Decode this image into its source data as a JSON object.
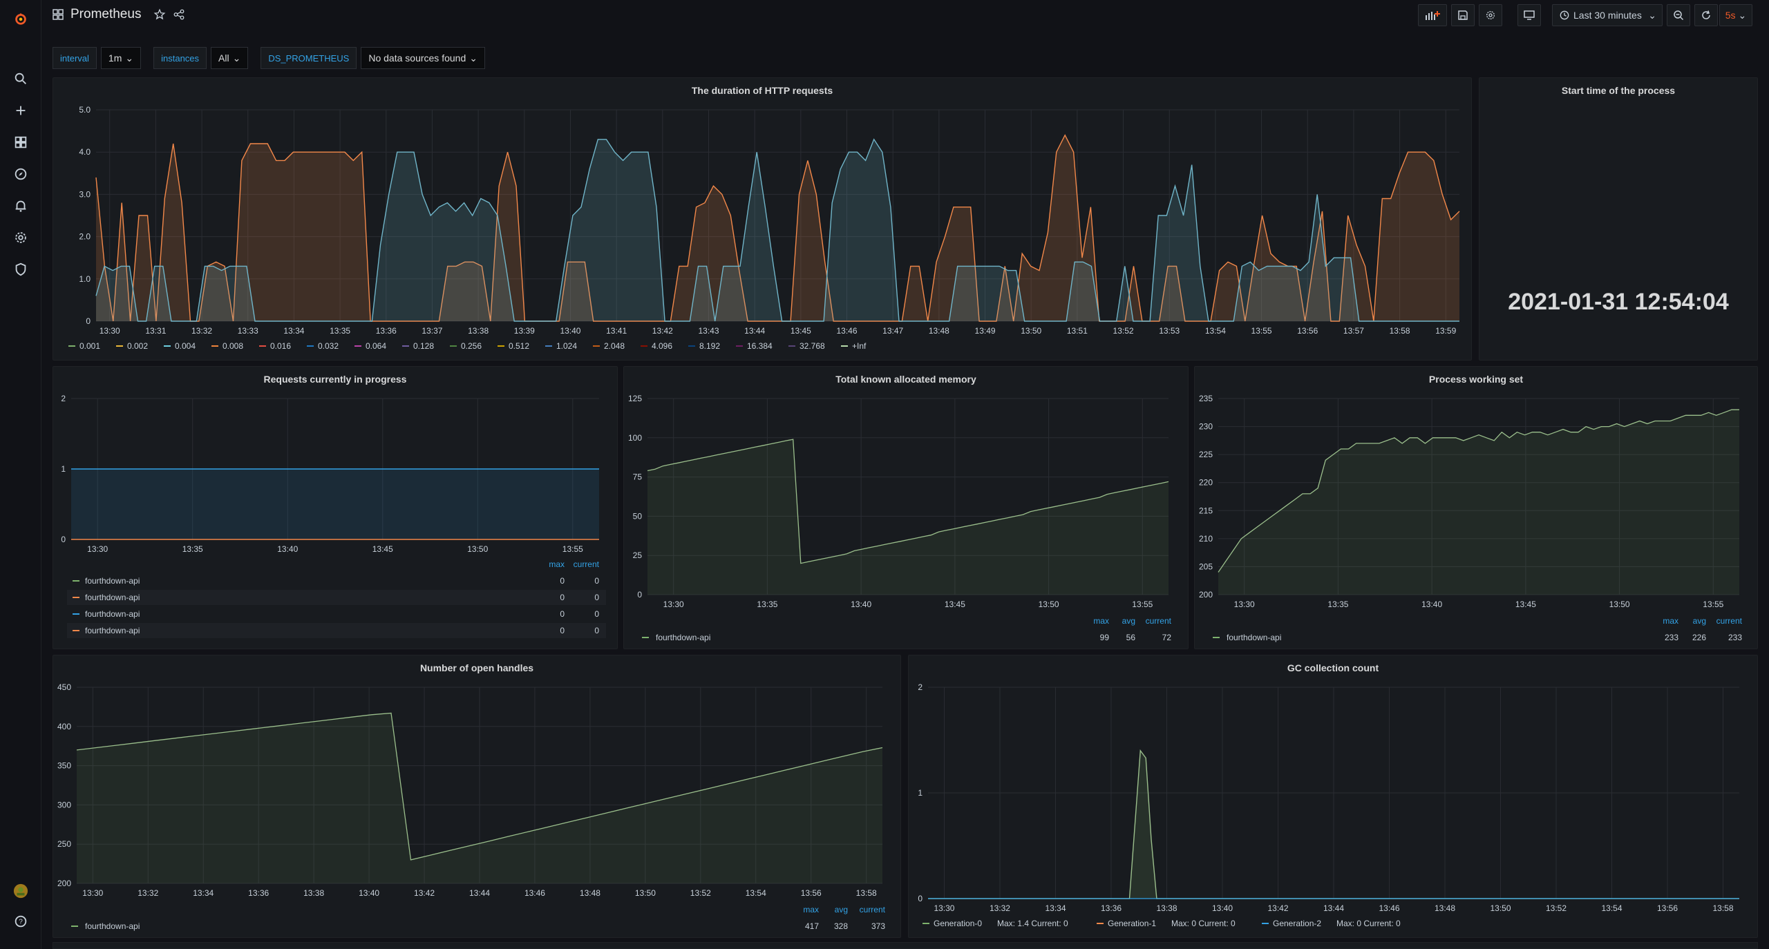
{
  "colors": {
    "bg": "#111217",
    "panel": "#181b1f",
    "accent": "#f05a28",
    "blue": "#33a2e5"
  },
  "sidebar": {
    "items": [
      {
        "icon": "grafana-logo-icon"
      },
      {
        "icon": "search-icon"
      },
      {
        "icon": "plus-icon"
      },
      {
        "icon": "dashboards-icon"
      },
      {
        "icon": "explore-icon"
      },
      {
        "icon": "alerting-bell-icon"
      },
      {
        "icon": "gear-icon"
      },
      {
        "icon": "shield-icon"
      },
      {
        "icon": "avatar-icon"
      },
      {
        "icon": "help-icon"
      }
    ]
  },
  "header": {
    "title": "Prometheus",
    "time_range": "Last 30 minutes",
    "refresh": "5s"
  },
  "variables": [
    {
      "label": "interval",
      "value": "1m"
    },
    {
      "label": "instances",
      "value": "All"
    },
    {
      "label": "DS_PROMETHEUS",
      "value": "No data sources found"
    }
  ],
  "panels": {
    "http": {
      "title": "The duration of HTTP requests"
    },
    "start": {
      "title": "Start time of the process",
      "value": "2021-01-31 12:54:04"
    },
    "inprog": {
      "title": "Requests currently in progress"
    },
    "mem": {
      "title": "Total known allocated memory"
    },
    "ws": {
      "title": "Process working set"
    },
    "handles": {
      "title": "Number of open handles"
    },
    "gc": {
      "title": "GC collection count"
    }
  },
  "chart_data": [
    {
      "id": "http",
      "type": "area",
      "title": "The duration of HTTP requests",
      "ylim": [
        0,
        5
      ],
      "yticks": [
        "0",
        "1.0",
        "2.0",
        "3.0",
        "4.0",
        "5.0"
      ],
      "xticks": [
        "13:30",
        "13:31",
        "13:32",
        "13:33",
        "13:34",
        "13:35",
        "13:36",
        "13:37",
        "13:38",
        "13:39",
        "13:40",
        "13:41",
        "13:42",
        "13:43",
        "13:44",
        "13:45",
        "13:46",
        "13:47",
        "13:48",
        "13:49",
        "13:50",
        "13:51",
        "13:52",
        "13:53",
        "13:54",
        "13:55",
        "13:56",
        "13:57",
        "13:58",
        "13:59"
      ],
      "legend": [
        "0.001",
        "0.002",
        "0.004",
        "0.008",
        "0.016",
        "0.032",
        "0.064",
        "0.128",
        "0.256",
        "0.512",
        "1.024",
        "2.048",
        "4.096",
        "8.192",
        "16.384",
        "32.768",
        "+Inf"
      ],
      "series": [
        {
          "color": "#f2884a",
          "values": [
            3.4,
            1.3,
            0,
            2.8,
            0,
            2.5,
            2.5,
            0,
            2.9,
            4.2,
            2.8,
            0,
            0,
            1.3,
            1.4,
            1.3,
            0,
            3.8,
            4.2,
            4.2,
            4.2,
            3.8,
            3.8,
            4.0,
            4.0,
            4.0,
            4.0,
            4.0,
            4.0,
            4.0,
            3.8,
            4.0,
            0,
            0,
            0,
            0,
            0,
            0,
            0,
            0,
            0,
            1.3,
            1.3,
            1.4,
            1.4,
            1.3,
            0,
            3.2,
            4.0,
            3.2,
            0,
            0,
            0,
            0,
            0,
            1.4,
            1.4,
            1.4,
            0,
            0,
            0,
            0,
            0,
            0,
            0,
            0,
            0,
            0,
            1.3,
            1.3,
            2.7,
            2.8,
            3.2,
            3.0,
            2.5,
            1.2,
            0,
            0,
            0,
            0,
            0,
            0,
            3.0,
            3.8,
            3.0,
            1.4,
            0,
            0,
            0,
            0,
            0,
            0,
            0,
            0,
            0,
            1.3,
            1.3,
            0,
            1.4,
            2.0,
            2.7,
            2.7,
            2.7,
            0,
            0,
            0,
            1.3,
            0,
            1.6,
            1.3,
            1.2,
            2.1,
            4.0,
            4.4,
            4.0,
            1.5,
            2.7,
            0,
            0,
            0,
            0,
            1.3,
            0,
            0,
            0,
            1.3,
            1.3,
            0,
            0,
            0,
            0,
            1.2,
            1.4,
            1.3,
            0,
            1.3,
            2.5,
            1.6,
            1.4,
            1.3,
            1.3,
            0,
            1.4,
            2.6,
            0,
            0,
            2.5,
            1.8,
            1.3,
            0,
            2.9,
            2.9,
            3.5,
            4.0,
            4.0,
            4.0,
            3.8,
            3.0,
            2.4,
            2.6
          ],
          "opacity": 0.18
        },
        {
          "color": "#70b5c9",
          "values": [
            0.6,
            1.3,
            1.2,
            1.3,
            1.3,
            0,
            0,
            1.3,
            1.3,
            0,
            0,
            0,
            0,
            1.3,
            1.3,
            1.2,
            1.3,
            1.3,
            1.3,
            0,
            0,
            0,
            0,
            0,
            0,
            0,
            0,
            0,
            0,
            0,
            0,
            0,
            0,
            0,
            1.8,
            3.0,
            4.0,
            4.0,
            4.0,
            3.0,
            2.5,
            2.7,
            2.8,
            2.6,
            2.8,
            2.5,
            2.9,
            2.8,
            2.5,
            1.3,
            0,
            0,
            0,
            0,
            0,
            0,
            1.3,
            2.5,
            2.7,
            3.6,
            4.3,
            4.3,
            4.0,
            3.8,
            4.0,
            4.0,
            4.0,
            2.7,
            0,
            0,
            0,
            0,
            1.3,
            1.3,
            0,
            1.3,
            1.3,
            1.3,
            2.7,
            4.0,
            2.7,
            1.3,
            0,
            0,
            0,
            0,
            0,
            0,
            2.8,
            3.6,
            4.0,
            4.0,
            3.8,
            4.3,
            4.0,
            2.7,
            0,
            0,
            0,
            0,
            0,
            0,
            0,
            1.3,
            1.3,
            1.3,
            1.3,
            1.3,
            1.3,
            1.2,
            1.2,
            0,
            0,
            0,
            0,
            0,
            0,
            1.4,
            1.4,
            1.3,
            0,
            0,
            0,
            1.3,
            0,
            0,
            0,
            2.5,
            2.5,
            3.2,
            2.5,
            3.7,
            1.3,
            0,
            0,
            0,
            0,
            1.3,
            1.4,
            1.2,
            1.3,
            1.3,
            1.3,
            1.3,
            1.2,
            1.4,
            3.0,
            1.3,
            1.5,
            1.5,
            1.5,
            0,
            0,
            0,
            0,
            0,
            0,
            0,
            0,
            0,
            0,
            0,
            0,
            0
          ],
          "opacity": 0.18
        }
      ]
    },
    {
      "id": "inprog",
      "type": "area",
      "title": "Requests currently in progress",
      "ylim": [
        0,
        2
      ],
      "yticks": [
        "0",
        "1",
        "2"
      ],
      "xticks": [
        "13:30",
        "13:35",
        "13:40",
        "13:45",
        "13:50",
        "13:55"
      ],
      "value": 1,
      "legend_headers": [
        "max",
        "current"
      ],
      "legend_rows": [
        {
          "name": "fourthdown-api",
          "color": "#7eb26d",
          "max": "0",
          "current": "0"
        },
        {
          "name": "fourthdown-api",
          "color": "#f2884a",
          "max": "0",
          "current": "0"
        },
        {
          "name": "fourthdown-api",
          "color": "#33a2e5",
          "max": "0",
          "current": "0"
        },
        {
          "name": "fourthdown-api",
          "color": "#f2884a",
          "max": "0",
          "current": "0"
        }
      ]
    },
    {
      "id": "mem",
      "type": "area",
      "title": "Total known allocated memory",
      "ylim": [
        0,
        125
      ],
      "yticks": [
        "0",
        "25",
        "50",
        "75",
        "100",
        "125"
      ],
      "xticks": [
        "13:30",
        "13:35",
        "13:40",
        "13:45",
        "13:50",
        "13:55"
      ],
      "values": [
        79,
        80,
        82,
        83,
        84,
        85,
        86,
        87,
        88,
        89,
        90,
        91,
        92,
        93,
        94,
        95,
        96,
        97,
        98,
        99,
        20,
        21,
        22,
        23,
        24,
        25,
        26,
        28,
        29,
        30,
        31,
        32,
        33,
        34,
        35,
        36,
        37,
        38,
        40,
        41,
        42,
        43,
        44,
        45,
        46,
        47,
        48,
        49,
        50,
        51,
        53,
        54,
        55,
        56,
        57,
        58,
        59,
        60,
        61,
        62,
        64,
        65,
        66,
        67,
        68,
        69,
        70,
        71,
        72
      ],
      "legend_headers": [
        "max",
        "avg",
        "current"
      ],
      "legend_rows": [
        {
          "name": "fourthdown-api",
          "color": "#7eb26d",
          "max": "99",
          "avg": "56",
          "current": "72"
        }
      ]
    },
    {
      "id": "ws",
      "type": "area",
      "title": "Process working set",
      "ylim": [
        200,
        235
      ],
      "yticks": [
        "200",
        "205",
        "210",
        "215",
        "220",
        "225",
        "230",
        "235"
      ],
      "xticks": [
        "13:30",
        "13:35",
        "13:40",
        "13:45",
        "13:50",
        "13:55"
      ],
      "values": [
        204,
        206,
        208,
        210,
        211,
        212,
        213,
        214,
        215,
        216,
        217,
        218,
        218,
        219,
        224,
        225,
        226,
        226,
        227,
        227,
        227,
        227,
        227.5,
        228,
        227,
        228,
        228,
        227,
        228,
        228,
        228,
        228,
        227.5,
        228,
        228.5,
        228,
        227.5,
        229,
        228,
        229,
        228.5,
        229,
        229,
        228.5,
        229,
        229.5,
        229,
        229,
        230,
        229.5,
        230,
        230,
        230.5,
        230,
        230.5,
        231,
        230.5,
        231,
        231,
        231,
        231.5,
        232,
        232,
        232,
        232.5,
        232,
        232.5,
        233,
        233
      ],
      "legend_headers": [
        "max",
        "avg",
        "current"
      ],
      "legend_rows": [
        {
          "name": "fourthdown-api",
          "color": "#7eb26d",
          "max": "233",
          "avg": "226",
          "current": "233"
        }
      ]
    },
    {
      "id": "handles",
      "type": "area",
      "title": "Number of open handles",
      "ylim": [
        200,
        450
      ],
      "yticks": [
        "200",
        "250",
        "300",
        "350",
        "400",
        "450"
      ],
      "xticks": [
        "13:30",
        "13:32",
        "13:34",
        "13:36",
        "13:38",
        "13:40",
        "13:42",
        "13:44",
        "13:46",
        "13:48",
        "13:50",
        "13:52",
        "13:54",
        "13:56",
        "13:58"
      ],
      "values": [
        370,
        373,
        376,
        379,
        382,
        385,
        388,
        391,
        394,
        397,
        400,
        403,
        406,
        409,
        412,
        415,
        417,
        230,
        236,
        242,
        248,
        254,
        260,
        266,
        272,
        278,
        284,
        290,
        296,
        302,
        308,
        314,
        320,
        326,
        332,
        338,
        344,
        350,
        356,
        362,
        368,
        373
      ],
      "legend_headers": [
        "max",
        "avg",
        "current"
      ],
      "legend_rows": [
        {
          "name": "fourthdown-api",
          "color": "#7eb26d",
          "max": "417",
          "avg": "328",
          "current": "373"
        }
      ]
    },
    {
      "id": "gc",
      "type": "line",
      "title": "GC collection count",
      "ylim": [
        0,
        2
      ],
      "yticks": [
        "0",
        "1",
        "2"
      ],
      "xticks": [
        "13:30",
        "13:32",
        "13:34",
        "13:36",
        "13:38",
        "13:40",
        "13:42",
        "13:44",
        "13:46",
        "13:48",
        "13:50",
        "13:52",
        "13:54",
        "13:56",
        "13:58"
      ],
      "values": [
        0,
        0,
        0,
        0,
        0,
        0,
        0,
        0,
        0,
        0,
        0,
        0,
        0,
        0,
        0,
        0,
        0,
        0,
        0,
        0,
        0,
        0,
        0,
        0,
        0,
        0,
        0,
        0,
        0,
        0,
        0,
        0,
        0,
        0,
        0,
        0,
        0,
        0,
        0,
        0,
        0,
        0,
        0,
        0,
        0,
        0,
        0,
        0,
        0,
        0,
        0,
        0,
        0,
        0,
        0,
        0,
        0,
        0,
        0,
        0,
        0,
        0,
        0,
        0,
        0,
        0,
        0,
        0,
        0,
        0,
        0,
        0,
        0,
        0,
        0,
        0,
        0,
        0,
        0,
        0,
        0,
        0,
        0,
        0,
        0,
        0,
        0,
        0,
        0,
        0,
        0,
        0,
        0,
        0,
        0,
        0,
        0,
        0,
        0,
        0,
        0,
        0,
        0,
        0,
        0,
        0,
        0,
        0,
        0,
        0,
        0,
        0,
        0,
        0,
        0,
        0,
        0,
        0,
        0,
        0,
        0,
        0,
        0,
        0,
        0,
        0,
        0,
        0,
        0,
        0,
        0,
        0,
        0,
        0,
        0,
        0,
        0,
        0,
        0,
        0,
        0,
        0,
        0,
        0,
        0,
        0,
        0,
        0,
        0,
        0
      ],
      "spike": {
        "index": 39,
        "value": 1.4
      },
      "legend": [
        {
          "name": "Generation-0",
          "color": "#7eb26d",
          "text": "Max: 1.4  Current: 0"
        },
        {
          "name": "Generation-1",
          "color": "#f2884a",
          "text": "Max: 0  Current: 0"
        },
        {
          "name": "Generation-2",
          "color": "#33a2e5",
          "text": "Max: 0  Current: 0"
        }
      ]
    }
  ]
}
